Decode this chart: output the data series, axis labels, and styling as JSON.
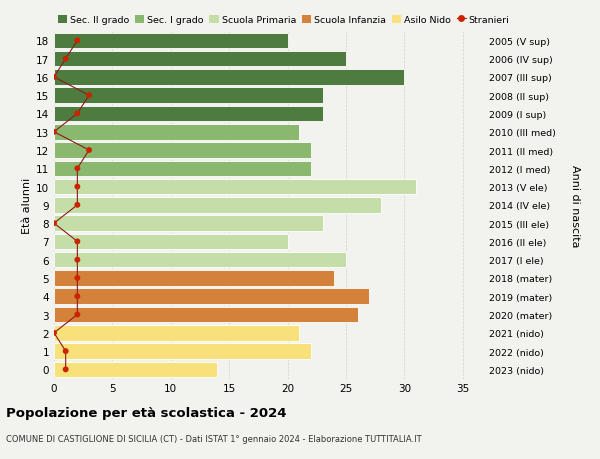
{
  "ages": [
    0,
    1,
    2,
    3,
    4,
    5,
    6,
    7,
    8,
    9,
    10,
    11,
    12,
    13,
    14,
    15,
    16,
    17,
    18
  ],
  "bar_values": [
    14,
    22,
    21,
    26,
    27,
    24,
    25,
    20,
    23,
    28,
    31,
    22,
    22,
    21,
    23,
    23,
    30,
    25,
    20
  ],
  "stranieri": [
    1,
    1,
    0,
    2,
    2,
    2,
    2,
    2,
    0,
    2,
    2,
    2,
    3,
    0,
    2,
    3,
    0,
    1,
    2
  ],
  "right_labels": [
    "2023 (nido)",
    "2022 (nido)",
    "2021 (nido)",
    "2020 (mater)",
    "2019 (mater)",
    "2018 (mater)",
    "2017 (I ele)",
    "2016 (II ele)",
    "2015 (III ele)",
    "2014 (IV ele)",
    "2013 (V ele)",
    "2012 (I med)",
    "2011 (II med)",
    "2010 (III med)",
    "2009 (I sup)",
    "2008 (II sup)",
    "2007 (III sup)",
    "2006 (IV sup)",
    "2005 (V sup)"
  ],
  "bar_colors": [
    "#f8e07a",
    "#f8e07a",
    "#f8e07a",
    "#d4813a",
    "#d4813a",
    "#d4813a",
    "#c5dea8",
    "#c5dea8",
    "#c5dea8",
    "#c5dea8",
    "#c5dea8",
    "#8ab86e",
    "#8ab86e",
    "#8ab86e",
    "#4e7c3f",
    "#4e7c3f",
    "#4e7c3f",
    "#4e7c3f",
    "#4e7c3f"
  ],
  "legend_labels": [
    "Sec. II grado",
    "Sec. I grado",
    "Scuola Primaria",
    "Scuola Infanzia",
    "Asilo Nido",
    "Stranieri"
  ],
  "legend_colors": [
    "#4e7c3f",
    "#8ab86e",
    "#c5dea8",
    "#d4813a",
    "#f8e07a",
    "#cc2200"
  ],
  "ylabel_left": "Età alunni",
  "ylabel_right": "Anni di nascita",
  "title": "Popolazione per età scolastica - 2024",
  "subtitle": "COMUNE DI CASTIGLIONE DI SICILIA (CT) - Dati ISTAT 1° gennaio 2024 - Elaborazione TUTTITALIA.IT",
  "xlim": [
    0,
    37
  ],
  "ylim": [
    -0.5,
    18.5
  ],
  "bar_height": 0.85,
  "bg_color": "#f2f2ee",
  "grid_color": "#d0d0d0"
}
